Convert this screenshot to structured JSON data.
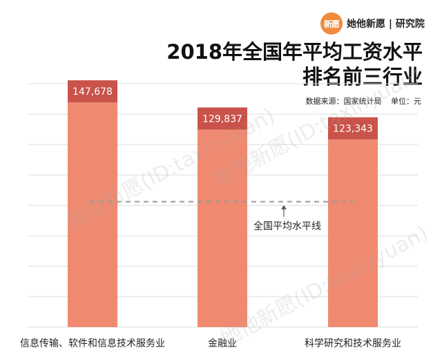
{
  "brand": {
    "logo_text": "新愿",
    "name": "她他新愿 | 研究院"
  },
  "title_lines": [
    "2018年全国年平均工资水平",
    "排名前三行业"
  ],
  "meta": {
    "source": "数据来源：国家统计局",
    "unit": "单位：元"
  },
  "watermark": "她他新愿(ID:taxinyuan)",
  "colors": {
    "bar": "#ef8a71",
    "label_box": "#c9534a",
    "label_text": "#ffffff",
    "grid": "#dedede",
    "avg_line": "#999999",
    "logo": "#f08a3c"
  },
  "chart_data": {
    "type": "bar",
    "categories": [
      "信息传输、软件和信息技术服务业",
      "金融业",
      "科学研究和技术服务业"
    ],
    "values": [
      147678,
      129837,
      123343
    ],
    "value_labels": [
      "147,678",
      "129,837",
      "123,343"
    ],
    "title": "2018年全国年平均工资水平排名前三行业",
    "ylim": [
      0,
      160000
    ],
    "grid": true,
    "annotation": {
      "label": "全国平均水平线",
      "y": 82461
    }
  }
}
